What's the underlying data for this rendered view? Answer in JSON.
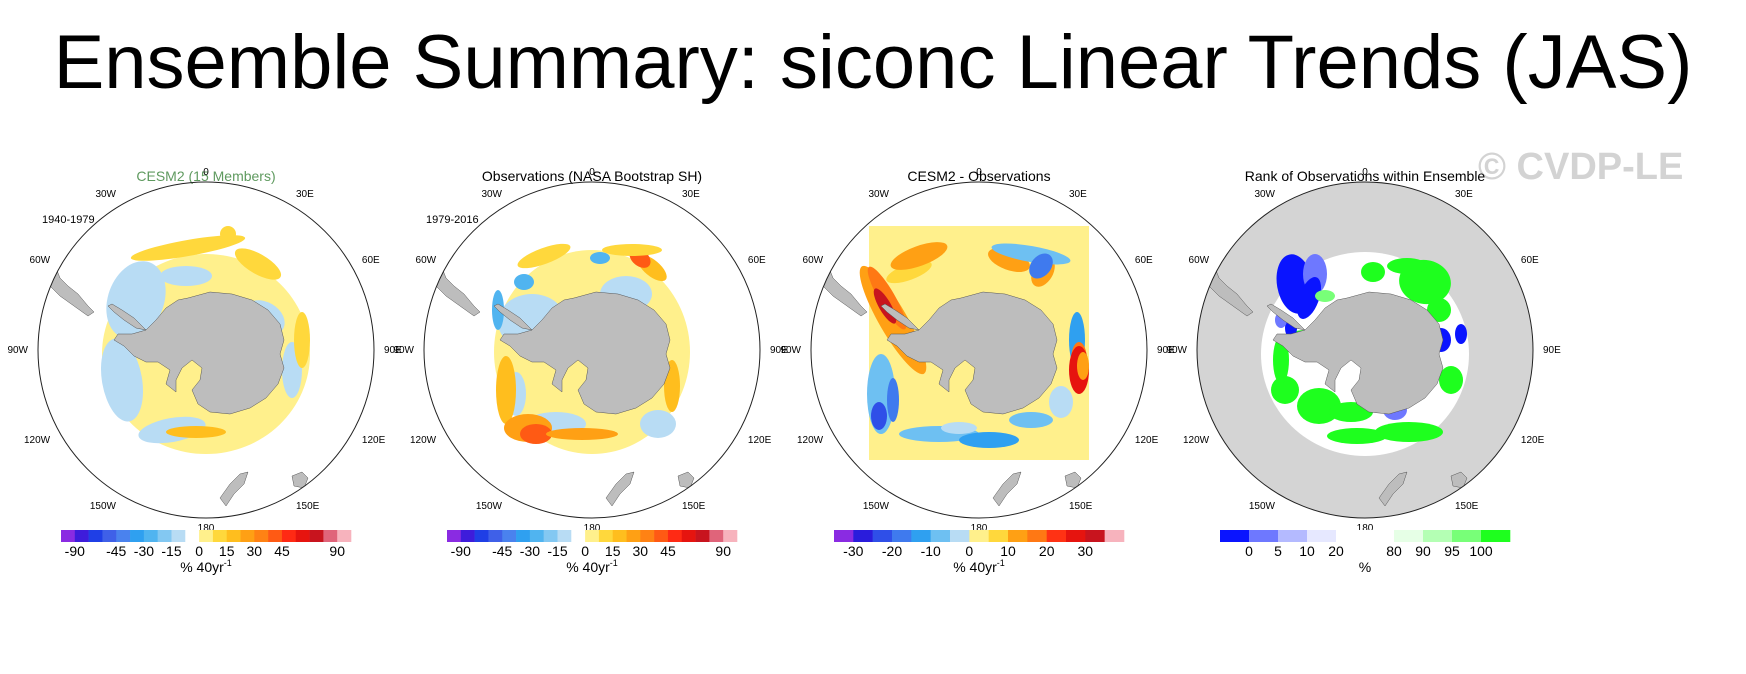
{
  "title": "Ensemble Summary: siconc Linear Trends (JAS)",
  "watermark": "© CVDP-LE",
  "colors": {
    "land": "#bdbdbd",
    "ocean_rank_bg": "#d4d4d4",
    "map_outline": "#222222",
    "yellow_background": "#fff08c"
  },
  "longitude_labels": [
    "0",
    "30E",
    "60E",
    "90E",
    "120E",
    "150E",
    "180",
    "150W",
    "120W",
    "90W",
    "60W",
    "30W"
  ],
  "panels": [
    {
      "id": "model",
      "title": "CESM2 (15 Members)",
      "period": "1940-1979",
      "colorbar": {
        "colors": [
          "#8a2be2",
          "#3e1cdb",
          "#1f3fe6",
          "#3f60e8",
          "#4a82ee",
          "#2fa0f0",
          "#50b4f0",
          "#83c8f2",
          "#b8dcf4",
          "#ffffff",
          "#fff08c",
          "#ffd83c",
          "#ffbe1e",
          "#ffa014",
          "#ff8214",
          "#ff5a14",
          "#ff2a14",
          "#e6140f",
          "#c8141e",
          "#e0647a",
          "#f7b3bd"
        ],
        "ticks": [
          "-90",
          "-45",
          "-30",
          "-15",
          "0",
          "15",
          "30",
          "45",
          "90"
        ],
        "label": "% 40yr",
        "superscript": "-1"
      }
    },
    {
      "id": "observations",
      "title": "Observations (NASA Bootstrap SH)",
      "period": "1979-2016",
      "colorbar": {
        "colors": [
          "#8a2be2",
          "#3e1cdb",
          "#1f3fe6",
          "#3f60e8",
          "#4a82ee",
          "#2fa0f0",
          "#50b4f0",
          "#83c8f2",
          "#b8dcf4",
          "#ffffff",
          "#fff08c",
          "#ffd83c",
          "#ffbe1e",
          "#ffa014",
          "#ff8214",
          "#ff5a14",
          "#ff2a14",
          "#e6140f",
          "#c8141e",
          "#e0647a",
          "#f7b3bd"
        ],
        "ticks": [
          "-90",
          "-45",
          "-30",
          "-15",
          "0",
          "15",
          "30",
          "45",
          "90"
        ],
        "label": "% 40yr",
        "superscript": "-1"
      }
    },
    {
      "id": "difference",
      "title": "CESM2 - Observations",
      "period": "",
      "colorbar": {
        "colors": [
          "#8a2be2",
          "#2a1cdc",
          "#2f4fe8",
          "#3f7aee",
          "#2fa0f0",
          "#6ec0f2",
          "#b8dcf4",
          "#fff08c",
          "#ffd83c",
          "#ffa014",
          "#ff7814",
          "#ff3214",
          "#e6140f",
          "#c8141e",
          "#f7b3bd"
        ],
        "ticks": [
          "-30",
          "-20",
          "-10",
          "0",
          "10",
          "20",
          "30"
        ],
        "label": "% 40yr",
        "superscript": "-1"
      }
    },
    {
      "id": "rank",
      "title": "Rank of Observations within Ensemble",
      "period": "",
      "colorbar": {
        "colors": [
          "#0a14ff",
          "#6e78ff",
          "#b4baff",
          "#e6e8ff",
          "#ffffff",
          "#ffffff",
          "#e6ffe6",
          "#b4ffb4",
          "#78ff78",
          "#1eff1e"
        ],
        "ticks": [
          "0",
          "5",
          "10",
          "20",
          "80",
          "90",
          "95",
          "100"
        ],
        "label": "%",
        "superscript": ""
      }
    }
  ]
}
